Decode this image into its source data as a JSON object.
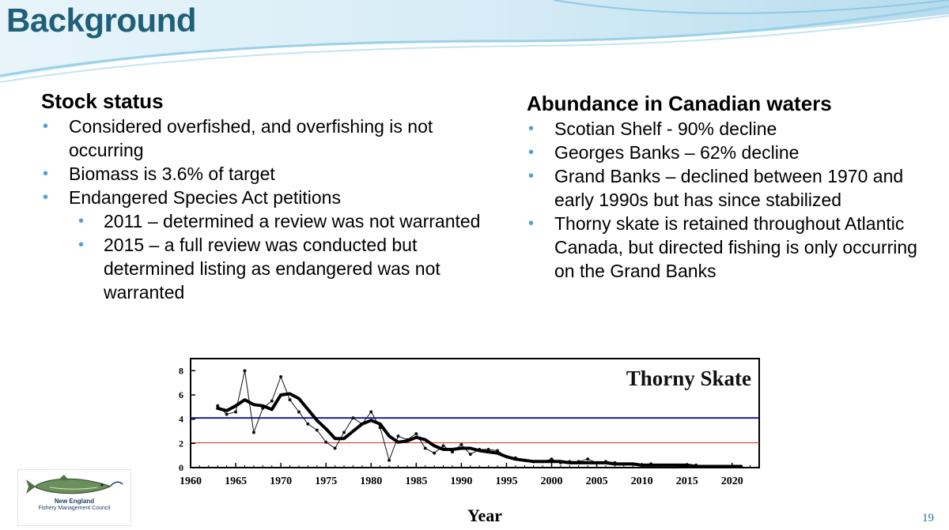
{
  "slide": {
    "title": "Background",
    "page_number": "19"
  },
  "left": {
    "heading": "Stock status",
    "bullets": [
      "Considered overfished, and overfishing is not occurring",
      "Biomass is 3.6% of target",
      "Endangered Species Act petitions"
    ],
    "sub_bullets": [
      "2011 – determined a review was not warranted",
      "2015 – a full review was conducted but determined listing as endangered was not warranted"
    ]
  },
  "right": {
    "heading": "Abundance in Canadian waters",
    "bullets": [
      "Scotian Shelf - 90% decline",
      "Georges Banks – 62% decline",
      "Grand Banks – declined between 1970 and early 1990s but has since stabilized",
      "Thorny skate is retained throughout Atlantic Canada, but directed fishing is only occurring on the Grand Banks"
    ]
  },
  "logo": {
    "line1": "New England",
    "line2": "Fishery Management Council"
  },
  "colors": {
    "title": "#1f5f7a",
    "bullet": "#4f9fd6",
    "target_line": "#1c1ca8",
    "threshold_line": "#cc2a1e"
  },
  "chart_data": {
    "type": "line",
    "title": "Thorny Skate",
    "xlabel": "Year",
    "ylabel": "",
    "xlim": [
      1960,
      2023
    ],
    "ylim": [
      0,
      9
    ],
    "x_ticks": [
      1960,
      1965,
      1970,
      1975,
      1980,
      1985,
      1990,
      1995,
      2000,
      2005,
      2010,
      2015,
      2020
    ],
    "y_ticks": [
      0,
      2,
      4,
      6,
      8
    ],
    "reference_lines": [
      {
        "y": 4.1,
        "color": "#1c1ca8"
      },
      {
        "y": 2.05,
        "color": "#cc2a1e"
      }
    ],
    "series": [
      {
        "style": "points",
        "x": [
          1963,
          1964,
          1965,
          1966,
          1967,
          1968,
          1969,
          1970,
          1971,
          1972,
          1973,
          1974,
          1975,
          1976,
          1977,
          1978,
          1979,
          1980,
          1981,
          1982,
          1983,
          1984,
          1985,
          1986,
          1987,
          1988,
          1989,
          1990,
          1991,
          1992,
          1993,
          1994,
          1995,
          1996,
          1997,
          1998,
          1999,
          2000,
          2001,
          2002,
          2003,
          2004,
          2005,
          2006,
          2007,
          2008,
          2009,
          2010,
          2011,
          2012,
          2013,
          2014,
          2015,
          2016,
          2017,
          2018,
          2019,
          2020,
          2021
        ],
        "values": [
          5.1,
          4.4,
          4.6,
          8.0,
          2.9,
          4.9,
          5.5,
          7.5,
          5.6,
          4.6,
          3.6,
          3.1,
          2.1,
          1.6,
          2.9,
          4.1,
          3.6,
          4.6,
          3.3,
          0.6,
          2.6,
          2.3,
          2.8,
          1.6,
          1.2,
          1.8,
          1.3,
          1.9,
          1.1,
          1.5,
          1.5,
          1.4,
          0.9,
          0.8,
          0.6,
          0.5,
          0.5,
          0.7,
          0.4,
          0.5,
          0.5,
          0.7,
          0.4,
          0.5,
          0.4,
          0.3,
          0.3,
          0.2,
          0.3,
          0.2,
          0.2,
          0.1,
          0.1,
          0.2,
          0.1,
          0.1,
          0.1,
          0.1,
          0.1
        ]
      },
      {
        "style": "smoothed",
        "x": [
          1963,
          1964,
          1965,
          1966,
          1967,
          1968,
          1969,
          1970,
          1971,
          1972,
          1973,
          1974,
          1975,
          1976,
          1977,
          1978,
          1979,
          1980,
          1981,
          1982,
          1983,
          1984,
          1985,
          1986,
          1987,
          1988,
          1989,
          1990,
          1991,
          1992,
          1993,
          1994,
          1995,
          1996,
          1997,
          1998,
          1999,
          2000,
          2001,
          2002,
          2003,
          2004,
          2005,
          2006,
          2007,
          2008,
          2009,
          2010,
          2011,
          2012,
          2013,
          2014,
          2015,
          2016,
          2017,
          2018,
          2019,
          2020,
          2021
        ],
        "values": [
          4.9,
          4.7,
          5.1,
          5.6,
          5.2,
          5.1,
          4.8,
          6.0,
          6.1,
          5.7,
          4.8,
          3.9,
          3.2,
          2.4,
          2.4,
          3.0,
          3.6,
          3.9,
          3.6,
          2.6,
          2.1,
          2.2,
          2.5,
          2.3,
          1.8,
          1.5,
          1.5,
          1.6,
          1.6,
          1.4,
          1.3,
          1.2,
          0.9,
          0.7,
          0.6,
          0.5,
          0.5,
          0.5,
          0.5,
          0.4,
          0.4,
          0.4,
          0.4,
          0.4,
          0.3,
          0.3,
          0.3,
          0.2,
          0.2,
          0.2,
          0.2,
          0.2,
          0.2,
          0.1,
          0.1,
          0.1,
          0.1,
          0.1,
          0.1
        ]
      }
    ]
  }
}
